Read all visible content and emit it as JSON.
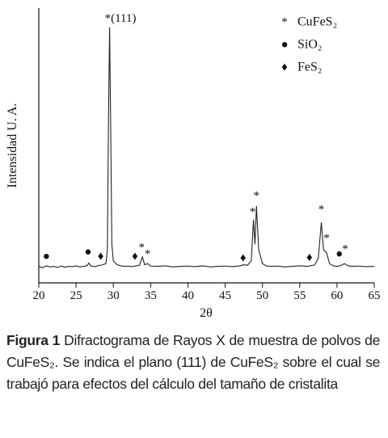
{
  "chart_data": {
    "type": "line",
    "y_label": "Intensidad U. A.",
    "x_label": "2θ",
    "color": "#222222",
    "x": [
      20,
      20.5,
      21,
      21.5,
      22,
      22.5,
      23,
      23.5,
      24,
      24.5,
      25,
      25.5,
      26,
      26.5,
      26.7,
      27,
      27.5,
      28,
      28.5,
      29,
      29.2,
      29.35,
      29.5,
      29.65,
      29.8,
      30,
      30.5,
      31,
      31.5,
      32,
      32.5,
      33,
      33.5,
      33.9,
      34.2,
      34.6,
      35,
      36,
      37,
      38,
      39,
      40,
      41,
      42,
      43,
      44,
      45,
      46,
      47,
      47.5,
      48,
      48.5,
      48.8,
      49,
      49.2,
      49.5,
      50,
      50.5,
      51,
      52,
      53,
      54,
      55,
      56,
      56.5,
      57,
      57.5,
      57.9,
      58.2,
      58.6,
      59,
      59.5,
      60,
      60.5,
      61,
      61.5,
      62,
      63,
      64,
      65
    ],
    "values": [
      6,
      5.5,
      6.2,
      5.8,
      6,
      5.6,
      6.1,
      5.7,
      6,
      5.9,
      6.2,
      5.8,
      6,
      6.3,
      7.2,
      6.1,
      5.9,
      6.3,
      6.5,
      7,
      12,
      60,
      93,
      55,
      14,
      8,
      6.6,
      6.2,
      6,
      6.1,
      5.9,
      6.2,
      6.4,
      9.4,
      6.6,
      7,
      6.1,
      6,
      6.2,
      5.8,
      6,
      6.1,
      5.9,
      6.2,
      5.8,
      6,
      6.1,
      5.9,
      6.2,
      6.6,
      6.4,
      8,
      23,
      14,
      28,
      12,
      7,
      6.2,
      6,
      6.1,
      5.8,
      6,
      6.2,
      6,
      6.3,
      6.5,
      9,
      22,
      12,
      11,
      7,
      6.2,
      6,
      6.3,
      7,
      6.2,
      6,
      6.1,
      5.9,
      6
    ],
    "xlim": [
      20,
      65
    ],
    "xticks": [
      20,
      25,
      30,
      35,
      40,
      45,
      50,
      55,
      60,
      65
    ],
    "ylim": [
      0,
      100
    ],
    "annotations": [
      {
        "text": "*(111)",
        "x": 29.5,
        "y": 96
      },
      {
        "text": "●",
        "x": 21,
        "y": 9.4
      },
      {
        "text": "●",
        "x": 26.6,
        "y": 11
      },
      {
        "text": "♦",
        "x": 28.3,
        "y": 9.4
      },
      {
        "text": "♦",
        "x": 32.9,
        "y": 9.4
      },
      {
        "text": "*",
        "x": 33.8,
        "y": 12.6
      },
      {
        "text": "*",
        "x": 34.6,
        "y": 10.3
      },
      {
        "text": "♦",
        "x": 47.4,
        "y": 8.8
      },
      {
        "text": "*",
        "x": 48.7,
        "y": 25.6
      },
      {
        "text": "*",
        "x": 49.2,
        "y": 31.5
      },
      {
        "text": "♦",
        "x": 56.3,
        "y": 9
      },
      {
        "text": "*",
        "x": 57.9,
        "y": 26.5
      },
      {
        "text": "*",
        "x": 58.6,
        "y": 16
      },
      {
        "text": "●",
        "x": 60.3,
        "y": 10.3
      },
      {
        "text": "*",
        "x": 61.1,
        "y": 12
      }
    ],
    "legend": [
      {
        "symbol": "*",
        "name": "CuFeS₂"
      },
      {
        "symbol": "●",
        "name": "SiO₂"
      },
      {
        "symbol": "♦",
        "name": "FeS₂"
      }
    ]
  },
  "caption": {
    "label": "Figura 1",
    "text": "Difractograma de Rayos X de muestra de polvos de CuFeS₂. Se indica el plano (111) de CuFeS₂ sobre el cual se trabajó para efectos del cálculo del tamaño de cristalita"
  }
}
